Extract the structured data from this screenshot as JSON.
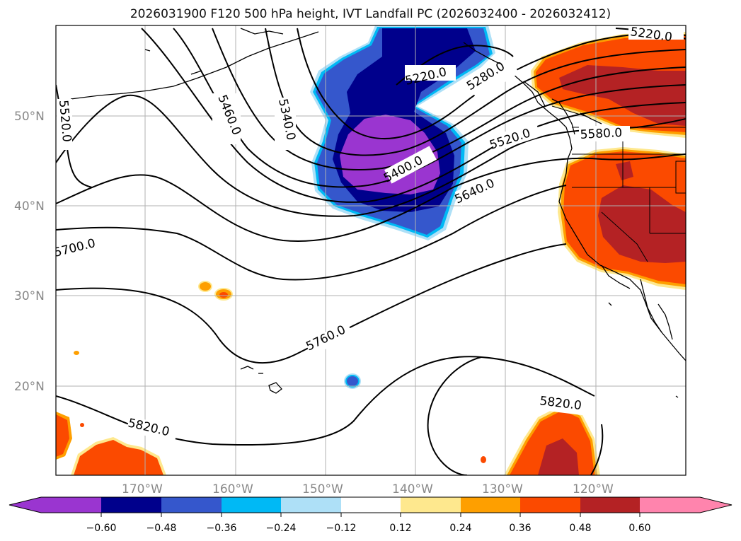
{
  "title": "2026031900 F120 500 hPa height, IVT Landfall PC (2026032400 - 2026032412)",
  "colors": {
    "purple": "#9a35d0",
    "navy": "#00008c",
    "royal": "#3557cc",
    "cyan": "#00b9f5",
    "lightblue": "#aee0f7",
    "white": "#ffffff",
    "paleyellow": "#fee88e",
    "orange": "#fe9f00",
    "redorange": "#fb4a00",
    "darkred": "#b42224",
    "pink": "#ff84ad"
  },
  "lat_labels": [
    "50°N",
    "40°N",
    "30°N",
    "20°N"
  ],
  "lon_labels": [
    "170°W",
    "160°W",
    "150°W",
    "140°W",
    "130°W",
    "120°W"
  ],
  "contour_labels": {
    "c5520_left": "5520.0",
    "c5460": "5460.0",
    "c5340": "5340.0",
    "c5220_a": "5220.0",
    "c5220_b": "5220.0",
    "c5280": "5280.0",
    "c5400": "5400.0",
    "c5520": "5520.0",
    "c5580": "5580.0",
    "c5640": "5640.0",
    "c5700": "5700.0",
    "c5760": "5760.0",
    "c5820_a": "5820.0",
    "c5820_b": "5820.0"
  },
  "colorbar": {
    "ticks": [
      "−0.60",
      "−0.48",
      "−0.36",
      "−0.24",
      "−0.12",
      "0.12",
      "0.24",
      "0.36",
      "0.48",
      "0.60"
    ]
  }
}
